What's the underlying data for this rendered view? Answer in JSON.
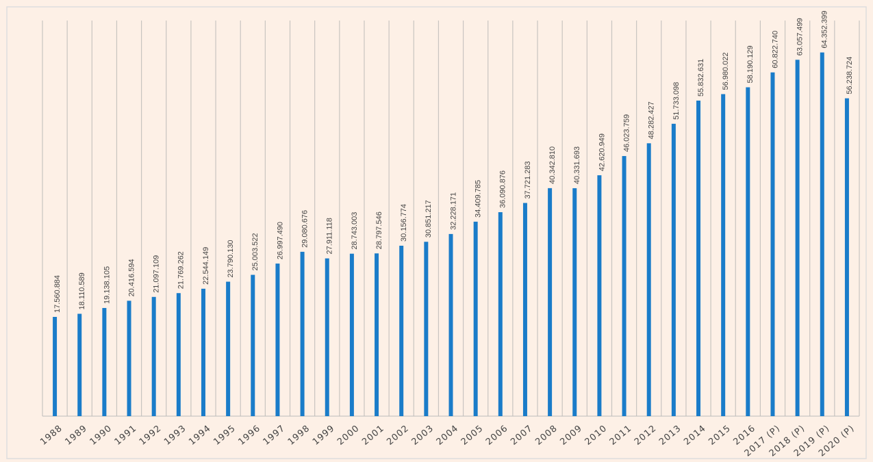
{
  "chart_data": {
    "type": "bar",
    "categories": [
      "1988",
      "1989",
      "1990",
      "1991",
      "1992",
      "1993",
      "1994",
      "1995",
      "1996",
      "1997",
      "1998",
      "1999",
      "2000",
      "2001",
      "2002",
      "2003",
      "2004",
      "2005",
      "2006",
      "2007",
      "2008",
      "2009",
      "2010",
      "2011",
      "2012",
      "2013",
      "2014",
      "2015",
      "2016",
      "2017 (P)",
      "2018 (P)",
      "2019 (P)",
      "2020 (P)"
    ],
    "values": [
      17560884,
      18110589,
      19138105,
      20416594,
      21097109,
      21769262,
      22544149,
      23790130,
      25003522,
      26997490,
      29080676,
      27911118,
      28743003,
      28797546,
      30156774,
      30851217,
      32228171,
      34409785,
      36090876,
      37721283,
      40342810,
      40331693,
      42620949,
      46023759,
      48282427,
      51733098,
      55832631,
      56980022,
      58190129,
      60822740,
      63057499,
      64352399,
      56238724
    ],
    "value_labels": [
      "17.560.884",
      "18.110.589",
      "19.138.105",
      "20.416.594",
      "21.097.109",
      "21.769.262",
      "22.544.149",
      "23.790.130",
      "25.003.522",
      "26.997.490",
      "29.080.676",
      "27.911.118",
      "28.743.003",
      "28.797.546",
      "30.156.774",
      "30.851.217",
      "32.228.171",
      "34.409.785",
      "36.090.876",
      "37.721.283",
      "40.342.810",
      "40.331.693",
      "42.620.949",
      "46.023.759",
      "48.282.427",
      "51.733.098",
      "55.832.631",
      "56.980.022",
      "58.190.129",
      "60.822.740",
      "63.057.499",
      "64.352.399",
      "56.238.724"
    ],
    "color": "#1a7cc9",
    "ylim": [
      0,
      70000000
    ]
  }
}
